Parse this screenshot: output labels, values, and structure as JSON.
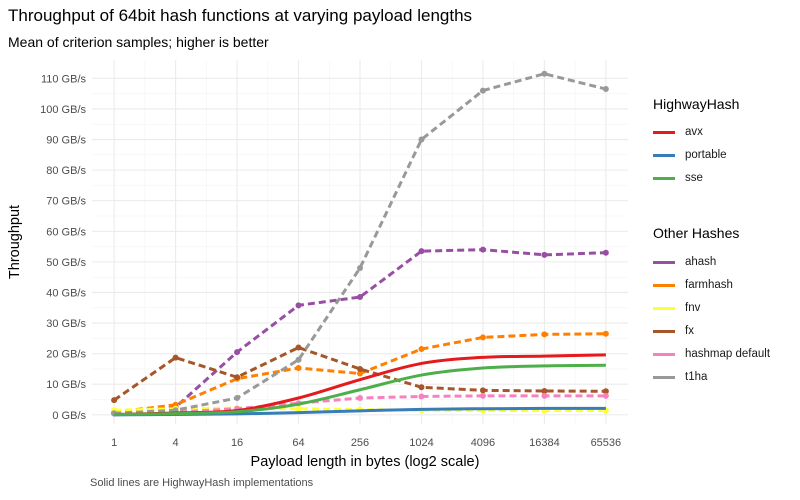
{
  "title": "Throughput of 64bit hash functions at varying payload lengths",
  "subtitle": "Mean of criterion samples; higher is better",
  "caption": "Solid lines are HighwayHash implementations",
  "legend": {
    "group1_title": "HighwayHash",
    "group2_title": "Other Hashes"
  },
  "chart_data": {
    "type": "line",
    "title": "Throughput of 64bit hash functions at varying payload lengths",
    "subtitle": "Mean of criterion samples; higher is better",
    "xlabel": "Payload length in bytes (log2 scale)",
    "ylabel": "Throughput",
    "x_scale": "log2",
    "x": [
      1,
      4,
      16,
      64,
      256,
      1024,
      4096,
      16384,
      65536
    ],
    "x_tick_labels": [
      "1",
      "4",
      "16",
      "64",
      "256",
      "1024",
      "4096",
      "16384",
      "65536"
    ],
    "y_ticks": [
      0,
      10,
      20,
      30,
      40,
      50,
      60,
      70,
      80,
      90,
      100,
      110
    ],
    "y_tick_labels": [
      "0 GB/s",
      "10 GB/s",
      "20 GB/s",
      "30 GB/s",
      "40 GB/s",
      "50 GB/s",
      "60 GB/s",
      "70 GB/s",
      "80 GB/s",
      "90 GB/s",
      "100 GB/s",
      "110 GB/s"
    ],
    "ylim": [
      -3,
      116
    ],
    "grid": true,
    "legend_position": "right",
    "series": [
      {
        "name": "avx",
        "group": "HighwayHash",
        "color": "#e41a1c",
        "style": "solid",
        "points": false,
        "values": [
          0.1,
          0.6,
          1.4,
          5.5,
          11.5,
          16.8,
          18.8,
          19.2,
          19.6
        ]
      },
      {
        "name": "portable",
        "group": "HighwayHash",
        "color": "#377eb8",
        "style": "solid",
        "points": false,
        "values": [
          0.0,
          0.1,
          0.3,
          0.7,
          1.3,
          1.8,
          2.0,
          2.1,
          2.1
        ]
      },
      {
        "name": "sse",
        "group": "HighwayHash",
        "color": "#4daf4a",
        "style": "solid",
        "points": false,
        "values": [
          0.1,
          0.4,
          1.0,
          3.5,
          8.2,
          13.0,
          15.3,
          16.0,
          16.2
        ]
      },
      {
        "name": "ahash",
        "group": "Other Hashes",
        "color": "#984ea3",
        "style": "dashed",
        "points": true,
        "values": [
          0.5,
          2.5,
          20.5,
          35.8,
          38.5,
          53.5,
          54.0,
          52.3,
          53.0
        ]
      },
      {
        "name": "farmhash",
        "group": "Other Hashes",
        "color": "#ff7f00",
        "style": "dashed",
        "points": true,
        "values": [
          0.8,
          3.3,
          11.8,
          15.3,
          13.5,
          21.5,
          25.3,
          26.3,
          26.5
        ]
      },
      {
        "name": "fnv",
        "group": "Other Hashes",
        "color": "#ffff33",
        "style": "dashed",
        "points": true,
        "values": [
          1.5,
          2.0,
          2.2,
          2.0,
          1.7,
          1.5,
          1.4,
          1.4,
          1.4
        ]
      },
      {
        "name": "fx",
        "group": "Other Hashes",
        "color": "#a65628",
        "style": "dashed",
        "points": true,
        "values": [
          4.8,
          18.7,
          12.3,
          22.0,
          15.0,
          9.0,
          8.0,
          7.8,
          7.7
        ]
      },
      {
        "name": "hashmap default",
        "group": "Other Hashes",
        "color": "#f781bf",
        "style": "dashed",
        "points": true,
        "values": [
          0.4,
          0.9,
          2.0,
          3.8,
          5.5,
          6.0,
          6.2,
          6.2,
          6.2
        ]
      },
      {
        "name": "t1ha",
        "group": "Other Hashes",
        "color": "#999999",
        "style": "dashed",
        "points": true,
        "values": [
          0.5,
          1.5,
          5.5,
          18.0,
          48.0,
          90.0,
          106.0,
          111.5,
          106.5
        ]
      }
    ]
  }
}
